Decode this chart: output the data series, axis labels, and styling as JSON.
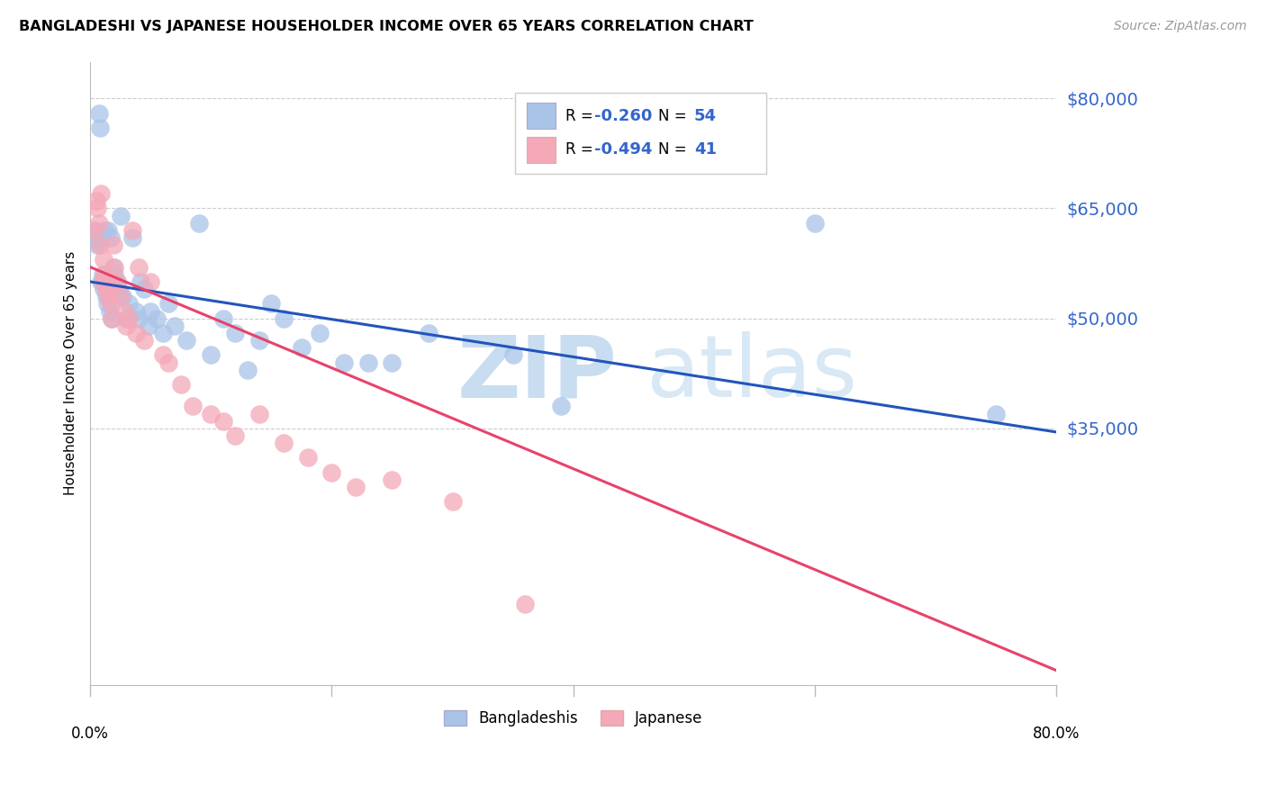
{
  "title": "BANGLADESHI VS JAPANESE HOUSEHOLDER INCOME OVER 65 YEARS CORRELATION CHART",
  "source": "Source: ZipAtlas.com",
  "ylabel": "Householder Income Over 65 years",
  "legend_blue_r": "-0.260",
  "legend_blue_n": "54",
  "legend_pink_r": "-0.494",
  "legend_pink_n": "41",
  "legend_blue_label": "Bangladeshis",
  "legend_pink_label": "Japanese",
  "ymin": 0,
  "ymax": 85000,
  "xmin": 0.0,
  "xmax": 0.8,
  "grid_color": "#cccccc",
  "blue_color": "#aac4e8",
  "pink_color": "#f4a8b8",
  "blue_line_color": "#2255bb",
  "pink_line_color": "#e8436a",
  "blue_scatter_x": [
    0.003,
    0.004,
    0.005,
    0.006,
    0.007,
    0.008,
    0.009,
    0.01,
    0.011,
    0.012,
    0.013,
    0.014,
    0.015,
    0.016,
    0.017,
    0.018,
    0.019,
    0.02,
    0.022,
    0.024,
    0.025,
    0.027,
    0.03,
    0.032,
    0.035,
    0.038,
    0.04,
    0.042,
    0.045,
    0.048,
    0.05,
    0.055,
    0.06,
    0.065,
    0.07,
    0.08,
    0.09,
    0.1,
    0.11,
    0.12,
    0.13,
    0.14,
    0.15,
    0.16,
    0.175,
    0.19,
    0.21,
    0.23,
    0.25,
    0.28,
    0.35,
    0.39,
    0.6,
    0.75
  ],
  "blue_scatter_y": [
    62000,
    61000,
    60500,
    60000,
    78000,
    76000,
    55000,
    56000,
    54000,
    62000,
    53000,
    52000,
    62000,
    51000,
    61000,
    50000,
    57000,
    56000,
    55000,
    54000,
    64000,
    53000,
    50000,
    52000,
    61000,
    51000,
    50000,
    55000,
    54000,
    49000,
    51000,
    50000,
    48000,
    52000,
    49000,
    47000,
    63000,
    45000,
    50000,
    48000,
    43000,
    47000,
    52000,
    50000,
    46000,
    48000,
    44000,
    44000,
    44000,
    48000,
    45000,
    38000,
    63000,
    37000
  ],
  "pink_scatter_x": [
    0.003,
    0.005,
    0.006,
    0.007,
    0.008,
    0.009,
    0.01,
    0.011,
    0.012,
    0.013,
    0.015,
    0.016,
    0.017,
    0.018,
    0.019,
    0.02,
    0.022,
    0.025,
    0.028,
    0.03,
    0.032,
    0.035,
    0.038,
    0.04,
    0.045,
    0.05,
    0.06,
    0.065,
    0.075,
    0.085,
    0.1,
    0.11,
    0.12,
    0.14,
    0.16,
    0.18,
    0.2,
    0.22,
    0.25,
    0.3,
    0.36
  ],
  "pink_scatter_y": [
    62000,
    66000,
    65000,
    63000,
    60000,
    67000,
    55000,
    58000,
    56000,
    54000,
    53000,
    55000,
    52000,
    50000,
    60000,
    57000,
    55000,
    53000,
    51000,
    49000,
    50000,
    62000,
    48000,
    57000,
    47000,
    55000,
    45000,
    44000,
    41000,
    38000,
    37000,
    36000,
    34000,
    37000,
    33000,
    31000,
    29000,
    27000,
    28000,
    25000,
    11000
  ],
  "blue_trendline_x": [
    0.0,
    0.8
  ],
  "blue_trendline_y": [
    55000,
    34500
  ],
  "pink_trendline_x": [
    0.0,
    0.8
  ],
  "pink_trendline_y": [
    57000,
    2000
  ],
  "ytick_vals": [
    35000,
    50000,
    65000,
    80000
  ],
  "ytick_labels": [
    "$35,000",
    "$50,000",
    "$65,000",
    "$80,000"
  ]
}
